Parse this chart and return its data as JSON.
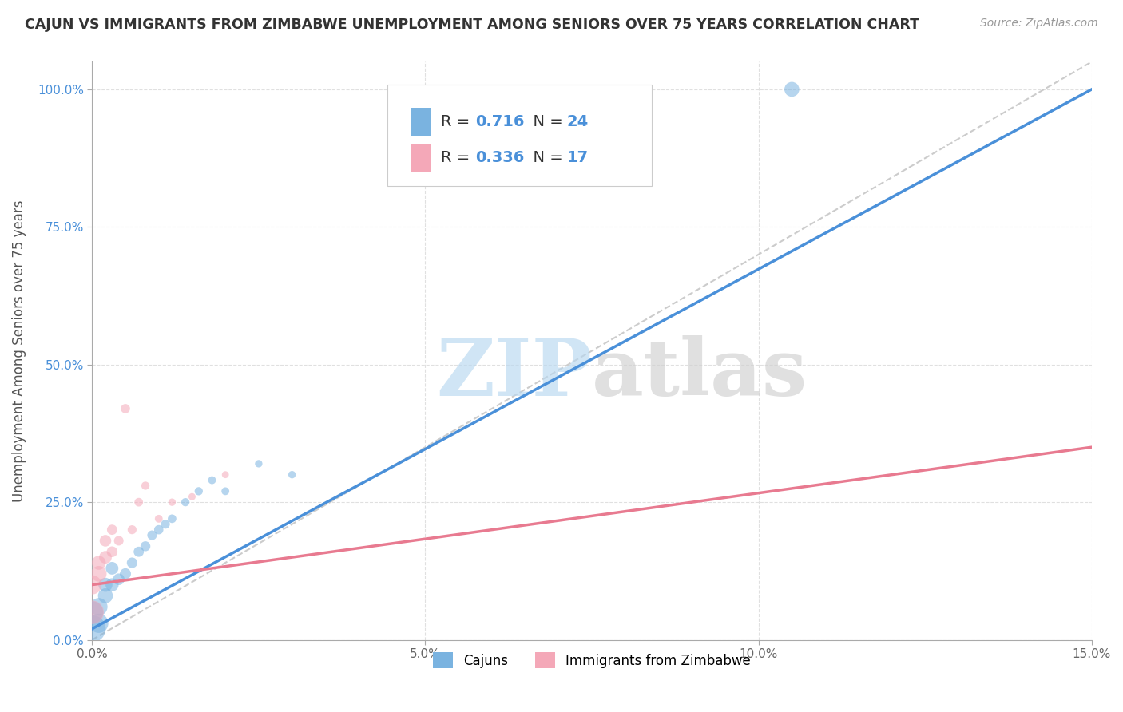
{
  "title": "CAJUN VS IMMIGRANTS FROM ZIMBABWE UNEMPLOYMENT AMONG SENIORS OVER 75 YEARS CORRELATION CHART",
  "source": "Source: ZipAtlas.com",
  "ylabel": "Unemployment Among Seniors over 75 years",
  "xlim": [
    0.0,
    0.15
  ],
  "ylim": [
    0.0,
    1.05
  ],
  "xticks": [
    0.0,
    0.05,
    0.1,
    0.15
  ],
  "xtick_labels": [
    "0.0%",
    "5.0%",
    "10.0%",
    "15.0%"
  ],
  "yticks": [
    0.0,
    0.25,
    0.5,
    0.75,
    1.0
  ],
  "ytick_labels": [
    "0.0%",
    "25.0%",
    "50.0%",
    "75.0%",
    "100.0%"
  ],
  "cajun_color": "#7ab3e0",
  "zimbabwe_color": "#f4a8b8",
  "line_cajun_color": "#4a90d9",
  "line_zimbabwe_color": "#e87a90",
  "diagonal_color": "#cccccc",
  "watermark_zip": "ZIP",
  "watermark_atlas": "atlas",
  "r_cajun": "0.716",
  "n_cajun": "24",
  "r_zimbabwe": "0.336",
  "n_zimbabwe": "17",
  "label_cajun": "Cajuns",
  "label_zimbabwe": "Immigrants from Zimbabwe",
  "cajun_x": [
    0.0,
    0.0,
    0.001,
    0.001,
    0.002,
    0.002,
    0.003,
    0.003,
    0.004,
    0.005,
    0.006,
    0.007,
    0.008,
    0.009,
    0.01,
    0.011,
    0.012,
    0.014,
    0.016,
    0.018,
    0.02,
    0.025,
    0.03,
    0.105
  ],
  "cajun_y": [
    0.02,
    0.05,
    0.03,
    0.06,
    0.08,
    0.1,
    0.1,
    0.13,
    0.11,
    0.12,
    0.14,
    0.16,
    0.17,
    0.19,
    0.2,
    0.21,
    0.22,
    0.25,
    0.27,
    0.29,
    0.27,
    0.32,
    0.3,
    1.0
  ],
  "cajun_sizes": [
    600,
    400,
    300,
    250,
    180,
    160,
    140,
    130,
    110,
    100,
    90,
    85,
    80,
    75,
    70,
    65,
    60,
    55,
    55,
    50,
    50,
    45,
    45,
    180
  ],
  "zimbabwe_x": [
    0.0,
    0.0,
    0.001,
    0.001,
    0.002,
    0.002,
    0.003,
    0.003,
    0.004,
    0.005,
    0.006,
    0.007,
    0.008,
    0.01,
    0.012,
    0.015,
    0.02
  ],
  "zimbabwe_y": [
    0.05,
    0.1,
    0.12,
    0.14,
    0.15,
    0.18,
    0.16,
    0.2,
    0.18,
    0.42,
    0.2,
    0.25,
    0.28,
    0.22,
    0.25,
    0.26,
    0.3
  ],
  "zimbabwe_sizes": [
    450,
    300,
    200,
    160,
    130,
    110,
    95,
    85,
    75,
    70,
    65,
    60,
    55,
    50,
    45,
    42,
    40
  ],
  "background_color": "#ffffff",
  "grid_color": "#e0e0e0"
}
